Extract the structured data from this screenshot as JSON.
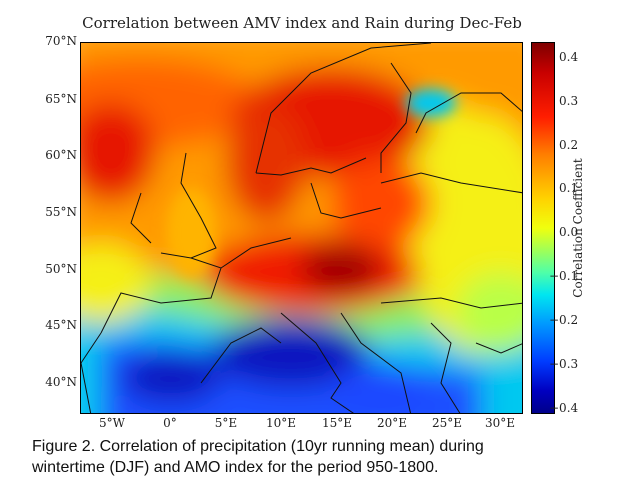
{
  "map": {
    "title": "Correlation between AMV index and Rain during Dec-Feb",
    "lat_labels": [
      "70°N",
      "65°N",
      "60°N",
      "55°N",
      "50°N",
      "45°N",
      "40°N"
    ],
    "lon_labels": [
      "5°W",
      "0°",
      "5°E",
      "10°E",
      "15°E",
      "20°E",
      "25°E",
      "30°E"
    ],
    "extent": {
      "lon_min": -9.5,
      "lon_max": 34.5,
      "lat_min": 37,
      "lat_max": 70
    }
  },
  "colorbar": {
    "label": "Correlation Coefficient",
    "ticks": [
      "0.4",
      "0.3",
      "0.2",
      "0.1",
      "0.0",
      "−0.1",
      "−0.2",
      "−0.3",
      "−0.4"
    ],
    "range": [
      -0.42,
      0.43
    ],
    "colormap": "jet"
  },
  "caption": {
    "line1": "Figure 2. Correlation of precipitation (10yr running mean) during",
    "line2": "wintertime (DJF) and AMO index for the period 950-1800."
  },
  "colors": {
    "deep_red": "#a00000",
    "red": "#e61400",
    "orange": "#ff8200",
    "yellow": "#f5f014",
    "green_yellow": "#b9ff46",
    "cyan": "#00c8f0",
    "blue": "#1e50ff",
    "dark_blue": "#0a14c0"
  }
}
